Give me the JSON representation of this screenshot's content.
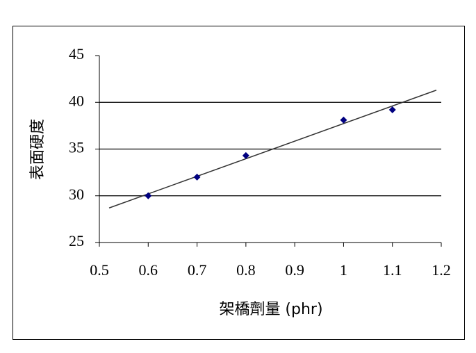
{
  "chart_data": {
    "type": "scatter",
    "x_label": "架橋劑量 (phr)",
    "y_label": "表面硬度",
    "x": [
      0.6,
      0.7,
      0.8,
      1.0,
      1.1
    ],
    "values": [
      30,
      32,
      34.3,
      38.1,
      39.2
    ],
    "color": "#000080",
    "trendline": {
      "x": [
        0.52,
        1.19
      ],
      "values": [
        28.7,
        41.3
      ],
      "color": "#333333"
    },
    "xlim": [
      0.5,
      1.2
    ],
    "xticks": [
      0.5,
      0.6,
      0.7,
      0.8,
      0.9,
      1,
      1.1,
      1.2
    ],
    "ylim": [
      25,
      45
    ],
    "yticks": [
      25,
      30,
      35,
      40,
      45
    ],
    "grid": true
  }
}
